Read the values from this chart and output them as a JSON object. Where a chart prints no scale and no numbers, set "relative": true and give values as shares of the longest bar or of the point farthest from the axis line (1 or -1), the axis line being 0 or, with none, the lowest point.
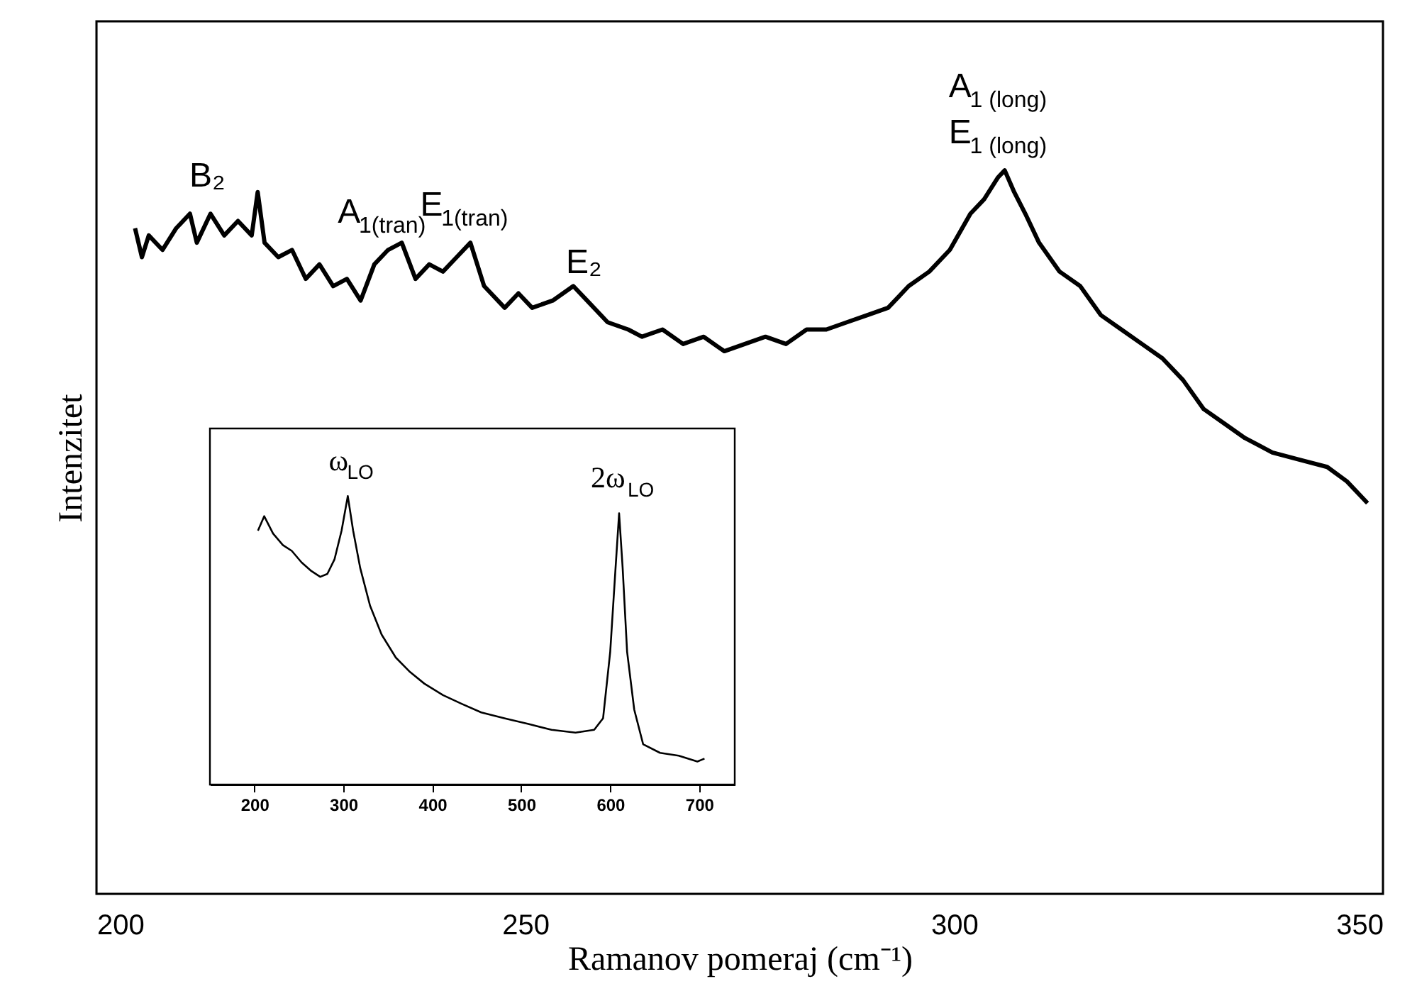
{
  "chart_data": [
    {
      "type": "line",
      "xlabel": "Ramanov pomeraj (cm⁻¹)",
      "ylabel": "Intenzitet",
      "relative": true,
      "tick_labels": "x",
      "xlim": [
        200,
        350
      ],
      "xticks": [
        200,
        250,
        300,
        350
      ],
      "x": [
        204.5,
        205.3,
        206.1,
        207.7,
        209.3,
        210.9,
        211.7,
        213.3,
        214.9,
        216.5,
        218.1,
        218.8,
        219.6,
        221.2,
        222.8,
        224.4,
        226.0,
        227.6,
        229.2,
        230.8,
        232.4,
        234.0,
        235.6,
        237.2,
        238.8,
        240.4,
        242.0,
        243.6,
        245.2,
        247.6,
        249.2,
        250.8,
        253.2,
        255.6,
        257.2,
        259.6,
        262.0,
        263.6,
        266.0,
        268.4,
        270.8,
        273.2,
        275.6,
        278.0,
        280.4,
        282.8,
        285.1,
        287.5,
        289.9,
        292.3,
        294.7,
        297.1,
        299.5,
        301.9,
        303.5,
        305.1,
        305.9,
        307.0,
        308.3,
        309.9,
        312.3,
        314.7,
        317.1,
        319.5,
        321.9,
        324.3,
        326.7,
        329.1,
        331.5,
        333.9,
        337.1,
        340.3,
        343.5,
        345.8,
        348.2
      ],
      "series": [
        {
          "color": "#000000",
          "values": [
            0.92,
            0.88,
            0.91,
            0.89,
            0.92,
            0.94,
            0.9,
            0.94,
            0.91,
            0.93,
            0.91,
            0.97,
            0.9,
            0.88,
            0.89,
            0.85,
            0.87,
            0.84,
            0.85,
            0.82,
            0.87,
            0.89,
            0.9,
            0.85,
            0.87,
            0.86,
            0.88,
            0.9,
            0.84,
            0.81,
            0.83,
            0.81,
            0.82,
            0.84,
            0.82,
            0.79,
            0.78,
            0.77,
            0.78,
            0.76,
            0.77,
            0.75,
            0.76,
            0.77,
            0.76,
            0.78,
            0.78,
            0.79,
            0.8,
            0.81,
            0.84,
            0.86,
            0.89,
            0.94,
            0.96,
            0.99,
            1.0,
            0.97,
            0.94,
            0.9,
            0.86,
            0.84,
            0.8,
            0.78,
            0.76,
            0.74,
            0.71,
            0.67,
            0.65,
            0.63,
            0.61,
            0.6,
            0.59,
            0.57,
            0.54
          ]
        }
      ],
      "annotations": [
        {
          "text": "B₂",
          "x": 213.3,
          "y": 0.94
        },
        {
          "text": "A$_{1(tran)}$",
          "x": 234.0,
          "y": 0.89
        },
        {
          "text": "E$_{1(tran)}$",
          "x": 243.6,
          "y": 0.9
        },
        {
          "text": "E₂",
          "x": 257.2,
          "y": 0.82
        },
        {
          "text": "A$_{1 (long)}$",
          "x": 305.9,
          "y": 1.0
        },
        {
          "text": "E$_{1 (long)}$",
          "x": 305.9,
          "y": 1.0
        }
      ]
    },
    {
      "type": "line",
      "relative": true,
      "tick_labels": "x",
      "xlim": [
        150,
        740
      ],
      "xticks": [
        200,
        300,
        400,
        500,
        600,
        700
      ],
      "x": [
        204,
        211,
        221,
        232,
        242,
        253,
        264,
        274,
        282,
        290,
        298,
        305,
        311,
        319,
        330,
        343,
        359,
        375,
        391,
        412,
        433,
        455,
        481,
        508,
        534,
        561,
        582,
        592,
        600,
        606,
        610,
        614,
        619,
        627,
        637,
        656,
        677,
        698,
        706
      ],
      "series": [
        {
          "color": "#000000",
          "values": [
            0.88,
            0.93,
            0.87,
            0.83,
            0.81,
            0.77,
            0.74,
            0.72,
            0.73,
            0.78,
            0.88,
            1.0,
            0.88,
            0.75,
            0.62,
            0.52,
            0.44,
            0.39,
            0.35,
            0.31,
            0.28,
            0.25,
            0.23,
            0.21,
            0.19,
            0.18,
            0.19,
            0.23,
            0.46,
            0.75,
            0.94,
            0.75,
            0.46,
            0.26,
            0.14,
            0.11,
            0.1,
            0.08,
            0.09
          ]
        }
      ],
      "annotations": [
        {
          "text": "ω$_{LO}$",
          "x": 305,
          "y": 1.0
        },
        {
          "text": "2ω$_{LO}$",
          "x": 610,
          "y": 0.94
        }
      ]
    }
  ]
}
